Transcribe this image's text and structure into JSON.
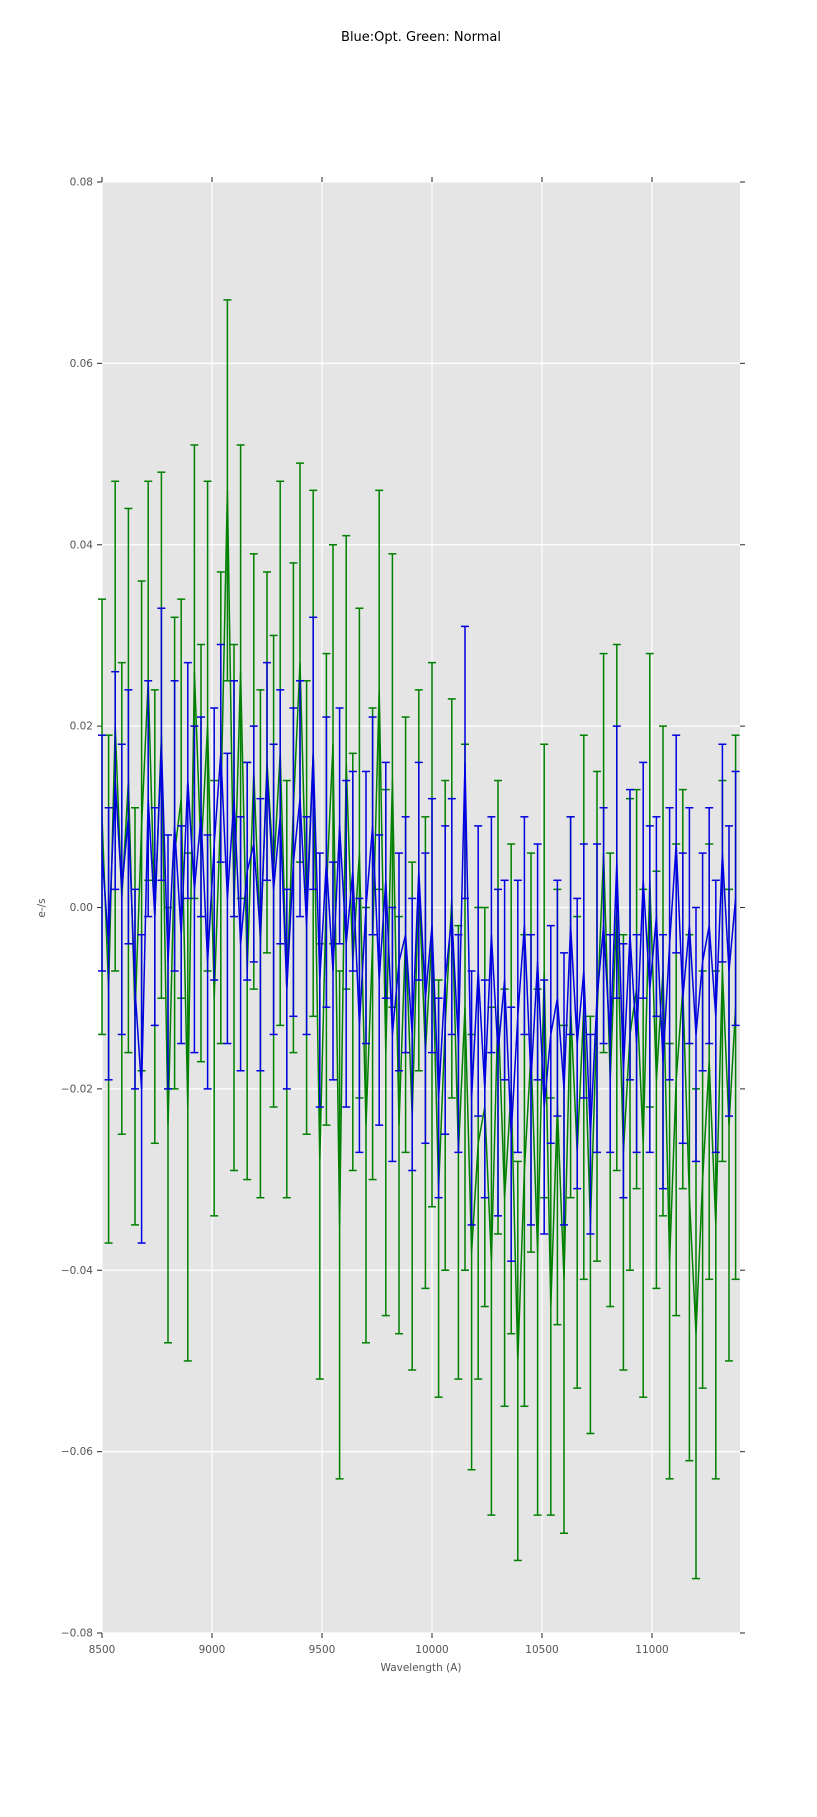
{
  "chart_data": {
    "type": "line",
    "variant": "errorbar",
    "title": "Blue:Opt. Green: Normal",
    "xlabel": "Wavelength (A)",
    "ylabel": "e-/s",
    "xlim": [
      8500,
      11400
    ],
    "ylim": [
      -0.08,
      0.08
    ],
    "xticks": [
      8500,
      9000,
      9500,
      10000,
      10500,
      11000
    ],
    "xtick_labels": [
      "8500",
      "9000",
      "9500",
      "10000",
      "10500",
      "11000"
    ],
    "yticks": [
      0.08,
      0.06,
      0.04,
      0.02,
      0.0,
      -0.02,
      -0.04,
      -0.06,
      -0.08
    ],
    "ytick_labels": [
      "0.08",
      "0.06",
      "0.04",
      "0.02",
      "0.00",
      "−0.02",
      "−0.04",
      "−0.06",
      "−0.08"
    ],
    "grid": true,
    "legend": "none",
    "colors": {
      "plot_bg": "#e5e5e5",
      "figure_bg": "#ffffff",
      "grid": "#ffffff",
      "tick_color": "#3a3a3a",
      "label_color": "#555555",
      "title_color": "#000000",
      "blue": "#0000e0",
      "green": "#008000"
    },
    "series": [
      {
        "name": "Opt",
        "legend_hint": "Blue:Opt.",
        "color": "#0000e0",
        "x_start": 8500,
        "x_step": 30,
        "y": [
          0.006,
          -0.004,
          0.014,
          0.002,
          0.01,
          -0.009,
          -0.02,
          0.012,
          -0.001,
          0.018,
          -0.006,
          0.009,
          -0.003,
          0.014,
          0.002,
          0.01,
          -0.006,
          0.007,
          0.017,
          0.001,
          0.012,
          -0.004,
          0.004,
          0.007,
          -0.003,
          0.015,
          0.002,
          0.01,
          -0.009,
          0.005,
          0.012,
          -0.002,
          0.017,
          -0.008,
          0.005,
          -0.007,
          0.009,
          -0.004,
          0.004,
          -0.013,
          0.0,
          0.009,
          -0.008,
          0.003,
          -0.014,
          -0.006,
          -0.003,
          -0.014,
          0.004,
          -0.01,
          -0.002,
          -0.021,
          -0.008,
          -0.001,
          -0.015,
          0.016,
          -0.021,
          -0.007,
          -0.02,
          -0.003,
          -0.016,
          -0.008,
          -0.025,
          -0.012,
          -0.002,
          -0.019,
          -0.006,
          -0.022,
          -0.014,
          -0.01,
          -0.02,
          -0.002,
          -0.015,
          -0.007,
          -0.025,
          -0.01,
          -0.002,
          -0.015,
          0.005,
          -0.018,
          -0.003,
          -0.015,
          0.003,
          -0.009,
          -0.001,
          -0.017,
          -0.004,
          0.007,
          -0.01,
          -0.002,
          -0.014,
          -0.006,
          -0.002,
          -0.012,
          0.006,
          -0.007,
          0.001
        ],
        "yerr": [
          0.013,
          0.015,
          0.012,
          0.016,
          0.014,
          0.011,
          0.017,
          0.013,
          0.012,
          0.015,
          0.014,
          0.016,
          0.012,
          0.013,
          0.018,
          0.011,
          0.014,
          0.015,
          0.012,
          0.016,
          0.013,
          0.014,
          0.012,
          0.013,
          0.015,
          0.012,
          0.016,
          0.014,
          0.011,
          0.017,
          0.013,
          0.012,
          0.015,
          0.014,
          0.016,
          0.012,
          0.013,
          0.018,
          0.011,
          0.014,
          0.015,
          0.012,
          0.016,
          0.013,
          0.014,
          0.012,
          0.013,
          0.015,
          0.012,
          0.016,
          0.014,
          0.011,
          0.017,
          0.013,
          0.012,
          0.015,
          0.014,
          0.016,
          0.012,
          0.013,
          0.018,
          0.011,
          0.014,
          0.015,
          0.012,
          0.016,
          0.013,
          0.014,
          0.012,
          0.013,
          0.015,
          0.012,
          0.016,
          0.014,
          0.011,
          0.017,
          0.013,
          0.012,
          0.015,
          0.014,
          0.016,
          0.012,
          0.013,
          0.018,
          0.011,
          0.014,
          0.015,
          0.012,
          0.016,
          0.013,
          0.014,
          0.012,
          0.013,
          0.015,
          0.012,
          0.016,
          0.014
        ]
      },
      {
        "name": "Normal",
        "legend_hint": "Green: Normal",
        "color": "#008000",
        "x_start": 8500,
        "x_step": 30,
        "y": [
          0.01,
          -0.009,
          0.02,
          0.001,
          0.014,
          -0.012,
          0.009,
          0.025,
          -0.001,
          0.019,
          -0.024,
          0.006,
          0.012,
          -0.022,
          0.026,
          0.006,
          0.02,
          -0.01,
          0.011,
          0.046,
          0.0,
          0.026,
          -0.007,
          0.015,
          -0.004,
          0.016,
          0.004,
          0.017,
          -0.009,
          0.011,
          0.027,
          0.0,
          0.017,
          -0.028,
          0.002,
          0.018,
          -0.035,
          0.016,
          -0.006,
          0.006,
          -0.024,
          -0.004,
          0.024,
          -0.016,
          0.014,
          -0.024,
          -0.003,
          -0.023,
          0.003,
          -0.016,
          -0.003,
          -0.031,
          -0.013,
          0.001,
          -0.027,
          -0.011,
          -0.038,
          -0.026,
          -0.022,
          -0.039,
          -0.011,
          -0.032,
          -0.02,
          -0.05,
          -0.029,
          -0.016,
          -0.038,
          -0.007,
          -0.044,
          -0.022,
          -0.041,
          -0.011,
          -0.027,
          -0.011,
          -0.035,
          -0.012,
          0.006,
          -0.019,
          0.0,
          -0.027,
          -0.014,
          -0.009,
          -0.026,
          0.003,
          -0.019,
          -0.007,
          -0.039,
          -0.019,
          -0.009,
          -0.032,
          -0.047,
          -0.03,
          -0.017,
          -0.035,
          -0.007,
          -0.024,
          -0.011
        ],
        "yerr": [
          0.024,
          0.028,
          0.027,
          0.026,
          0.03,
          0.023,
          0.027,
          0.022,
          0.025,
          0.029,
          0.024,
          0.026,
          0.022,
          0.028,
          0.025,
          0.023,
          0.027,
          0.024,
          0.026,
          0.021,
          0.029,
          0.025,
          0.023,
          0.024,
          0.028,
          0.021,
          0.026,
          0.03,
          0.023,
          0.027,
          0.022,
          0.025,
          0.029,
          0.024,
          0.026,
          0.022,
          0.028,
          0.025,
          0.023,
          0.027,
          0.024,
          0.026,
          0.022,
          0.029,
          0.025,
          0.023,
          0.024,
          0.028,
          0.021,
          0.026,
          0.03,
          0.023,
          0.027,
          0.022,
          0.025,
          0.029,
          0.024,
          0.026,
          0.022,
          0.028,
          0.025,
          0.023,
          0.027,
          0.022,
          0.026,
          0.022,
          0.029,
          0.025,
          0.023,
          0.024,
          0.028,
          0.021,
          0.026,
          0.03,
          0.023,
          0.027,
          0.022,
          0.025,
          0.029,
          0.024,
          0.026,
          0.022,
          0.028,
          0.025,
          0.023,
          0.027,
          0.024,
          0.026,
          0.022,
          0.029,
          0.027,
          0.023,
          0.024,
          0.028,
          0.021,
          0.026,
          0.03
        ]
      }
    ]
  }
}
